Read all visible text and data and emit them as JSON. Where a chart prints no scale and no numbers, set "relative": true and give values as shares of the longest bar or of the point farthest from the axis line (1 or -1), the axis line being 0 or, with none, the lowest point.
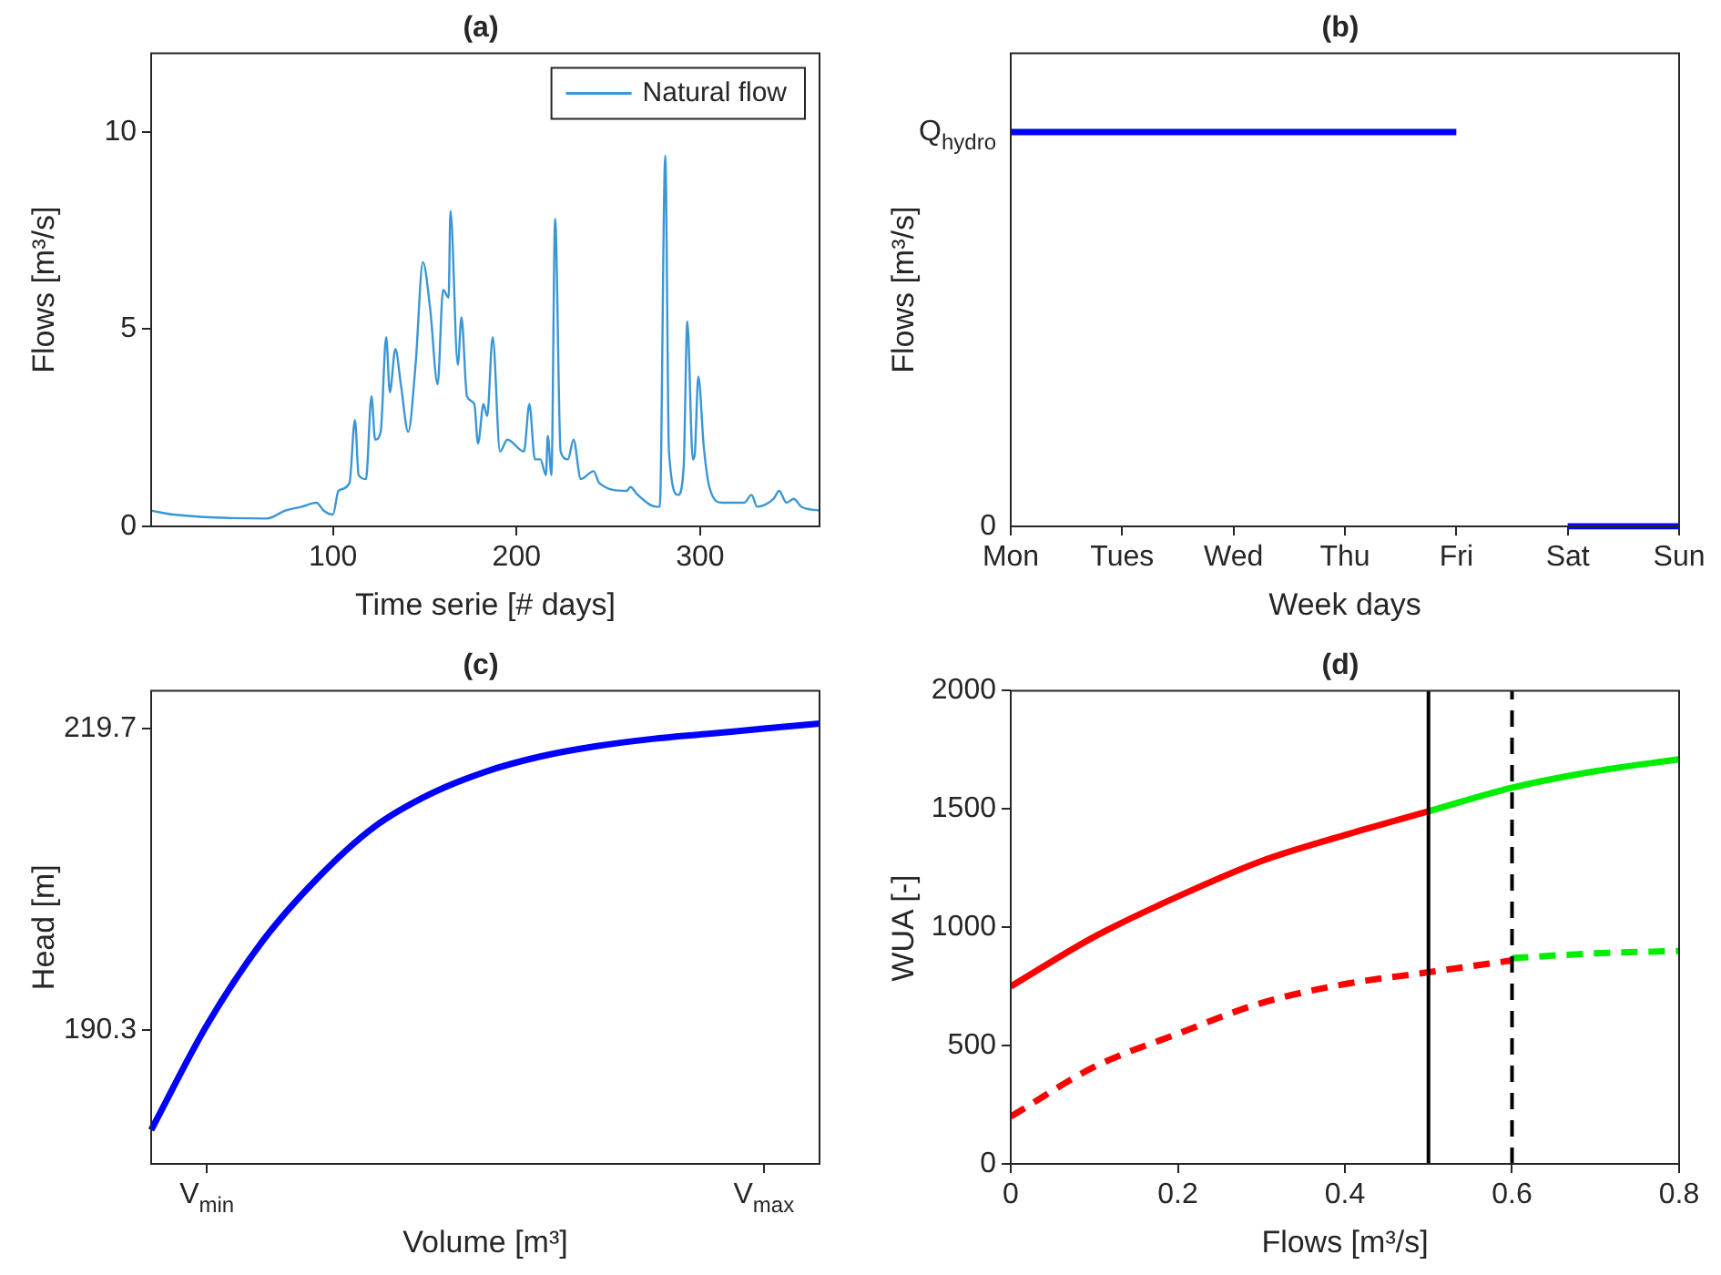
{
  "chart_data": [
    {
      "type": "line",
      "title": "(a)",
      "xlabel": "Time serie [# days]",
      "ylabel": "Flows [m³/s]",
      "xlim": [
        1,
        365
      ],
      "xticks": [
        100,
        200,
        300
      ],
      "ylim": [
        0,
        12
      ],
      "yticks": [
        0,
        5,
        10
      ],
      "legend": "top right",
      "series": [
        {
          "name": "Natural flow",
          "color": "#3a96d6",
          "x": [
            1,
            13,
            64,
            74,
            83,
            91,
            95,
            100,
            103,
            109,
            112,
            114,
            118,
            121,
            123,
            126,
            129,
            131,
            134,
            137,
            141,
            145,
            149,
            153,
            157,
            160,
            163,
            164,
            168,
            170,
            173,
            177,
            179,
            182,
            184,
            187,
            191,
            195,
            204,
            207,
            210,
            213,
            216,
            217,
            219,
            221,
            224,
            228,
            231,
            235,
            242,
            245,
            260,
            262,
            266,
            276,
            278,
            281,
            283,
            288,
            291,
            293,
            296,
            297,
            299,
            302,
            305,
            312,
            324,
            328,
            331,
            340,
            343,
            347,
            351,
            355,
            365
          ],
          "values": [
            0.4,
            0.3,
            0.2,
            0.4,
            0.5,
            0.6,
            0.4,
            0.3,
            0.9,
            1.1,
            2.7,
            1.3,
            1.2,
            3.3,
            2.2,
            2.4,
            4.8,
            3.4,
            4.5,
            3.6,
            2.4,
            4.1,
            6.7,
            5.5,
            3.6,
            6.0,
            5.8,
            8.0,
            4.1,
            5.3,
            3.3,
            3.1,
            2.1,
            3.1,
            2.8,
            4.8,
            1.9,
            2.2,
            1.9,
            3.1,
            1.7,
            1.7,
            1.3,
            2.3,
            1.3,
            7.8,
            1.9,
            1.7,
            2.2,
            1.2,
            1.4,
            1.1,
            0.9,
            1.0,
            0.8,
            0.5,
            0.5,
            9.4,
            1.9,
            0.8,
            1.5,
            5.2,
            1.7,
            1.8,
            3.8,
            2.0,
            1.0,
            0.6,
            0.6,
            0.8,
            0.5,
            0.7,
            0.9,
            0.6,
            0.7,
            0.5,
            0.4
          ]
        }
      ]
    },
    {
      "type": "line",
      "title": "(b)",
      "xlabel": "Week days",
      "ylabel": "Flows [m³/s]",
      "categories": [
        "Mon",
        "Tues",
        "Wed",
        "Thu",
        "Fri",
        "Sat",
        "Sun"
      ],
      "relative": true,
      "annotations": [
        "Q$_{hydro}$",
        "0"
      ],
      "series": [
        {
          "color": "#0000ff",
          "values": [
            1,
            1,
            1,
            1,
            1,
            0,
            0
          ]
        }
      ]
    },
    {
      "type": "line",
      "title": "(c)",
      "xlabel": "Volume [m³]",
      "ylabel": "Head [m]",
      "categories": [
        null,
        "V$_{min}$",
        null,
        null,
        null,
        null,
        null,
        null,
        null,
        null,
        null,
        "V$_{max}$",
        null
      ],
      "ylim": [
        177.3,
        223.4
      ],
      "yticks": [
        190.3,
        219.7
      ],
      "series": [
        {
          "color": "#0000ff",
          "values": [
            180.6,
            190.8,
            199.0,
            205.2,
            210.1,
            213.3,
            215.5,
            217.0,
            218.0,
            218.7,
            219.2,
            219.7,
            220.2
          ]
        }
      ]
    },
    {
      "type": "line",
      "title": "(d)",
      "xlabel": "Flows [m³/s]",
      "ylabel": "WUA [-]",
      "xlim": [
        0,
        0.8
      ],
      "xticks": [
        0,
        0.2,
        0.4,
        0.6,
        0.8
      ],
      "ylim": [
        0,
        2000
      ],
      "yticks": [
        0,
        500,
        1000,
        1500,
        2000
      ],
      "series": [
        {
          "color": "#ff0000",
          "line_style": "solid",
          "x": [
            0,
            0.1,
            0.2,
            0.3,
            0.4,
            0.5
          ],
          "values": [
            750,
            960,
            1130,
            1280,
            1390,
            1490
          ]
        },
        {
          "color": "#00ee00",
          "line_style": "solid",
          "x": [
            0.5,
            0.6,
            0.7,
            0.8
          ],
          "values": [
            1490,
            1590,
            1660,
            1710
          ]
        },
        {
          "color": "#ff0000",
          "line_style": "dashed",
          "x": [
            0,
            0.1,
            0.2,
            0.3,
            0.4,
            0.5,
            0.6
          ],
          "values": [
            200,
            410,
            550,
            680,
            760,
            810,
            860
          ]
        },
        {
          "color": "#00ee00",
          "line_style": "dashed",
          "x": [
            0.6,
            0.7,
            0.8
          ],
          "values": [
            870,
            890,
            900
          ]
        }
      ],
      "ref_lines": [
        {
          "axis": "x",
          "value": 0.5,
          "color": "#000000",
          "line_style": "solid"
        },
        {
          "axis": "x",
          "value": 0.6,
          "color": "#000000",
          "line_style": "dashed"
        }
      ]
    }
  ]
}
